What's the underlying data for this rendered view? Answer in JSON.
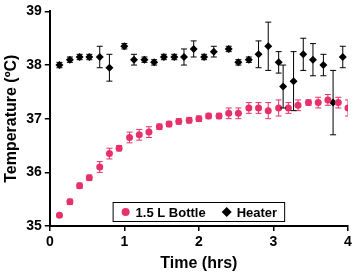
{
  "chart_data": {
    "type": "scatter",
    "x_label": "Time (hrs)",
    "y_label": "Temperature (ºC)",
    "xlim": [
      0,
      4
    ],
    "xticks": [
      0,
      1,
      2,
      3,
      4
    ],
    "ylim": [
      35,
      39
    ],
    "yticks": [
      35,
      36,
      37,
      38,
      39
    ],
    "grid": false,
    "legend": "bottom",
    "series": [
      {
        "name": "1.5 L Bottle",
        "color": "#e6316b",
        "marker": "circle",
        "x": [
          0.13,
          0.27,
          0.4,
          0.53,
          0.67,
          0.8,
          0.93,
          1.07,
          1.2,
          1.33,
          1.47,
          1.6,
          1.73,
          1.87,
          2.0,
          2.13,
          2.27,
          2.4,
          2.53,
          2.67,
          2.8,
          2.93,
          3.07,
          3.2,
          3.33,
          3.47,
          3.6,
          3.73,
          3.87,
          4.0
        ],
        "values": [
          35.2,
          35.45,
          35.75,
          35.9,
          36.1,
          36.35,
          36.45,
          36.65,
          36.7,
          36.75,
          36.85,
          36.9,
          36.95,
          36.97,
          37.0,
          37.05,
          37.05,
          37.1,
          37.1,
          37.2,
          37.2,
          37.15,
          37.2,
          37.2,
          37.25,
          37.3,
          37.3,
          37.35,
          37.3,
          37.2
        ],
        "errors": [
          0.03,
          0.05,
          0.05,
          0.05,
          0.1,
          0.1,
          0.05,
          0.1,
          0.1,
          0.1,
          0.05,
          0.05,
          0.05,
          0.05,
          0.05,
          0.05,
          0.05,
          0.1,
          0.1,
          0.1,
          0.1,
          0.15,
          0.15,
          0.1,
          0.1,
          0.05,
          0.1,
          0.1,
          0.1,
          0.15
        ]
      },
      {
        "name": "Heater",
        "color": "#000000",
        "marker": "diamond",
        "x": [
          0.13,
          0.27,
          0.4,
          0.53,
          0.67,
          0.8,
          1.0,
          1.13,
          1.27,
          1.4,
          1.53,
          1.67,
          1.8,
          1.93,
          2.07,
          2.2,
          2.4,
          2.53,
          2.67,
          2.8,
          2.93,
          3.07,
          3.13,
          3.27,
          3.4,
          3.53,
          3.67,
          3.8,
          3.93
        ],
        "values": [
          38.0,
          38.1,
          38.15,
          38.15,
          38.15,
          37.95,
          38.35,
          38.1,
          38.1,
          38.05,
          38.15,
          38.15,
          38.15,
          38.3,
          38.15,
          38.25,
          38.3,
          38.05,
          38.1,
          38.2,
          38.35,
          38.05,
          37.6,
          37.7,
          38.2,
          38.1,
          38.0,
          37.3,
          38.15
        ],
        "errors": [
          0.05,
          0.05,
          0.05,
          0.05,
          0.2,
          0.25,
          0.05,
          0.1,
          0.05,
          0.05,
          0.05,
          0.05,
          0.15,
          0.15,
          0.05,
          0.1,
          0.05,
          0.05,
          0.05,
          0.25,
          0.45,
          0.2,
          0.4,
          0.55,
          0.3,
          0.3,
          0.2,
          0.6,
          0.2
        ]
      }
    ]
  }
}
